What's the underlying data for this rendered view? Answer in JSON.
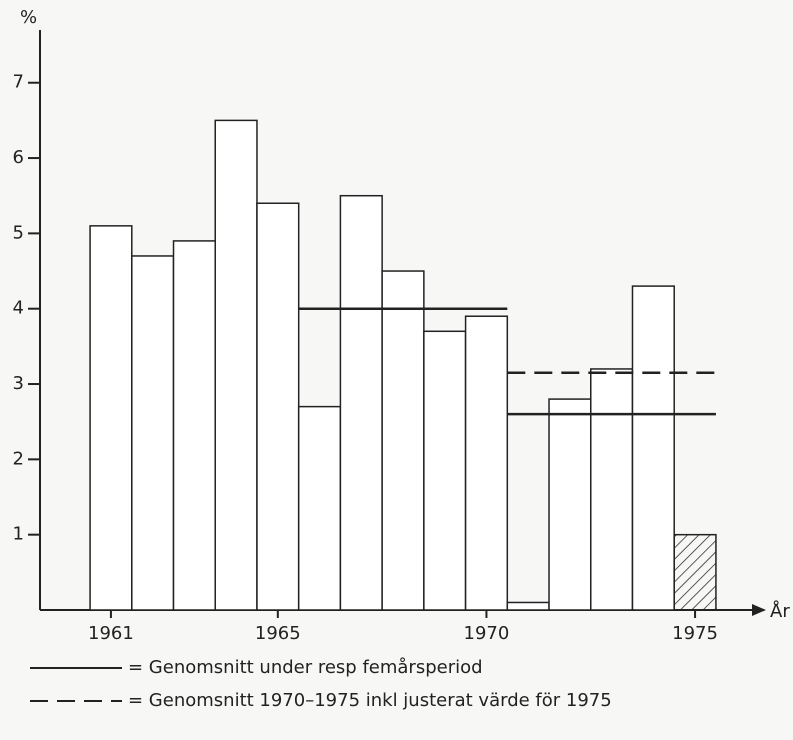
{
  "chart_data": {
    "type": "bar",
    "y_label": "%",
    "x_label": "År",
    "x": [
      1961,
      1962,
      1963,
      1964,
      1965,
      1966,
      1967,
      1968,
      1969,
      1970,
      1971,
      1972,
      1973,
      1974,
      1975
    ],
    "values": [
      5.1,
      4.7,
      4.9,
      6.5,
      5.4,
      2.7,
      5.5,
      4.5,
      3.7,
      3.9,
      0.1,
      2.8,
      3.2,
      4.3,
      1.0
    ],
    "hatched": [
      false,
      false,
      false,
      false,
      false,
      false,
      false,
      false,
      false,
      false,
      false,
      false,
      false,
      false,
      true
    ],
    "xlim": [
      1959.3,
      1976.7
    ],
    "xticks": [
      1961,
      1965,
      1970,
      1975
    ],
    "ylim": [
      0,
      7.7
    ],
    "yticks": [
      1,
      2,
      3,
      4,
      5,
      6,
      7
    ],
    "color": "#222222",
    "averages": [
      {
        "name": "= Genomsnitt under resp femårsperiod",
        "dashed": false,
        "segments": [
          {
            "x": [
              1966,
              1970
            ],
            "value": 4.0
          },
          {
            "x": [
              1971,
              1975
            ],
            "value": 2.6
          }
        ]
      },
      {
        "name": "= Genomsnitt 1970–1975 inkl justerat värde för 1975",
        "dashed": true,
        "segments": [
          {
            "x": [
              1971,
              1975
            ],
            "value": 3.15
          }
        ]
      }
    ]
  }
}
